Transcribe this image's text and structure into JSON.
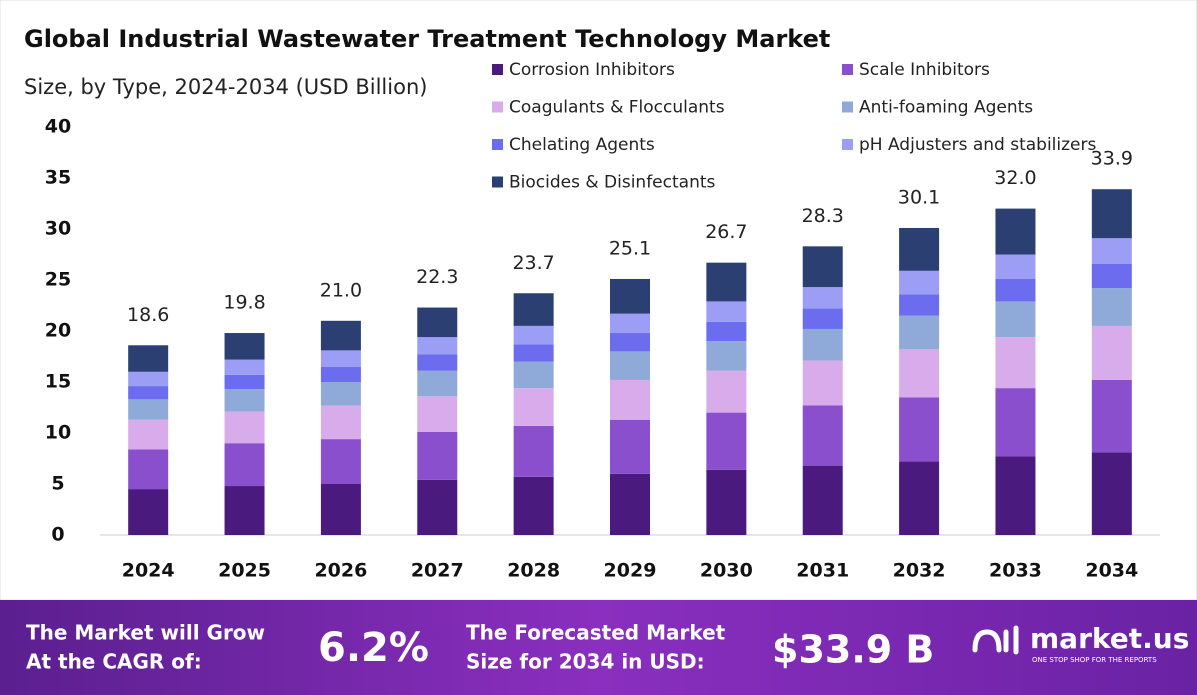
{
  "chart_data": {
    "type": "stacked_bar",
    "title": "Global Industrial Wastewater Treatment Technology Market",
    "subtitle": "Size, by Type, 2024-2034 (USD Billion)",
    "categories": [
      "2024",
      "2025",
      "2026",
      "2027",
      "2028",
      "2029",
      "2030",
      "2031",
      "2032",
      "2033",
      "2034"
    ],
    "series": [
      {
        "name": "Corrosion Inhibitors",
        "color": "#4b1a7f",
        "values": [
          4.5,
          4.8,
          5.0,
          5.4,
          5.7,
          6.0,
          6.4,
          6.8,
          7.2,
          7.7,
          8.1
        ]
      },
      {
        "name": "Scale Inhibitors",
        "color": "#8a4fcc",
        "values": [
          3.9,
          4.2,
          4.4,
          4.7,
          5.0,
          5.3,
          5.6,
          5.9,
          6.3,
          6.7,
          7.1
        ]
      },
      {
        "name": "Coagulants & Flocculants",
        "color": "#d8abeb",
        "values": [
          2.9,
          3.1,
          3.3,
          3.5,
          3.7,
          3.9,
          4.1,
          4.4,
          4.7,
          5.0,
          5.3
        ]
      },
      {
        "name": "Anti-foaming Agents",
        "color": "#8faad8",
        "values": [
          2.0,
          2.2,
          2.3,
          2.5,
          2.6,
          2.8,
          2.9,
          3.1,
          3.3,
          3.5,
          3.7
        ]
      },
      {
        "name": "Chelating Agents",
        "color": "#6b6cee",
        "values": [
          1.3,
          1.4,
          1.5,
          1.6,
          1.7,
          1.8,
          1.9,
          2.0,
          2.1,
          2.2,
          2.4
        ]
      },
      {
        "name": "pH Adjusters and stabilizers",
        "color": "#9c9df5",
        "values": [
          1.4,
          1.5,
          1.6,
          1.7,
          1.8,
          1.9,
          2.0,
          2.1,
          2.3,
          2.4,
          2.5
        ]
      },
      {
        "name": "Biocides & Disinfectants",
        "color": "#2b3f73",
        "values": [
          2.6,
          2.6,
          2.9,
          2.9,
          3.2,
          3.4,
          3.8,
          4.0,
          4.2,
          4.5,
          4.8
        ]
      }
    ],
    "totals": {
      "values": [
        18.6,
        19.8,
        21.0,
        22.3,
        23.7,
        25.1,
        26.7,
        28.3,
        30.1,
        32.0,
        33.9
      ],
      "value_labels": [
        "18.6",
        "19.8",
        "21.0",
        "22.3",
        "23.7",
        "25.1",
        "26.7",
        "28.3",
        "30.1",
        "32.0",
        "33.9"
      ]
    },
    "ylim": [
      0,
      40
    ],
    "yticks": [
      0,
      5,
      10,
      15,
      20,
      25,
      30,
      35,
      40
    ],
    "grid": false
  },
  "footer": {
    "cagr_text_1": "The Market will Grow",
    "cagr_text_2": "At the CAGR of:",
    "cagr_value": "6.2%",
    "forecast_text_1": "The Forecasted Market",
    "forecast_text_2": "Size for 2034 in USD:",
    "forecast_value": "$33.9 B",
    "brand": "market.us",
    "tagline": "ONE STOP SHOP FOR THE REPORTS"
  }
}
